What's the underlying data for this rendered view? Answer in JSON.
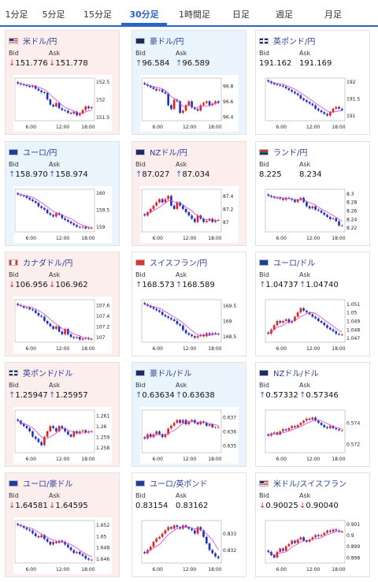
{
  "tabs": [
    {
      "label": "1分足",
      "active": false
    },
    {
      "label": "5分足",
      "active": false
    },
    {
      "label": "15分足",
      "active": false
    },
    {
      "label": "30分足",
      "active": true
    },
    {
      "label": "1時間足",
      "active": false
    },
    {
      "label": "日足",
      "active": false
    },
    {
      "label": "週足",
      "active": false
    },
    {
      "label": "月足",
      "active": false
    }
  ],
  "labels": {
    "bid": "Bid",
    "ask": "Ask"
  },
  "colors": {
    "up_arrow": "#2b64c8",
    "down_arrow": "#d23a2a",
    "ma_line": "#d640d6",
    "candle_up": "#e02020",
    "candle_down": "#1c2fc0",
    "title": "#2c3e9c"
  },
  "pairs": [
    {
      "name": "米ドル/円",
      "flag": "us-flag-icon",
      "bg": "red",
      "bid_arrow": "↓",
      "bid": "151.776",
      "ask_arrow": "↓",
      "ask": "151.778",
      "chart_data": {
        "type": "candlestick",
        "x_ticks": [
          "6:00",
          "12:00",
          "18:00"
        ],
        "y_ticks": [
          "152.5",
          "152",
          "151.5"
        ],
        "ylim": [
          151.4,
          152.6
        ],
        "series": [
          {
            "values": [
              152.45,
              152.42,
              152.4,
              152.38,
              152.35,
              152.38,
              152.3,
              152.25,
              152.2,
              152.18,
              152.0,
              151.85,
              151.8,
              151.9,
              151.75,
              151.7,
              151.68,
              151.62,
              151.6,
              151.65,
              151.55,
              151.6,
              151.7,
              151.8,
              151.75,
              151.78
            ]
          }
        ]
      }
    },
    {
      "name": "豪ドル/円",
      "flag": "au-flag-icon",
      "bg": "blue",
      "bid_arrow": "↑",
      "bid": "96.584",
      "ask_arrow": "↑",
      "ask": "96.589",
      "chart_data": {
        "type": "candlestick",
        "x_ticks": [
          "6:00",
          "12:00",
          "18:00"
        ],
        "y_ticks": [
          "96.8",
          "96.6",
          "96.4"
        ],
        "ylim": [
          96.35,
          96.9
        ],
        "series": [
          {
            "values": [
              96.82,
              96.8,
              96.78,
              96.76,
              96.74,
              96.75,
              96.72,
              96.7,
              96.55,
              96.5,
              96.62,
              96.6,
              96.45,
              96.48,
              96.55,
              96.6,
              96.52,
              96.5,
              96.48,
              96.55,
              96.58,
              96.6,
              96.55,
              96.57,
              96.6,
              96.58
            ]
          }
        ]
      }
    },
    {
      "name": "英ポンド/円",
      "flag": "uk-flag-icon",
      "bg": "white",
      "bid_arrow": "",
      "bid": "191.162",
      "ask_arrow": "",
      "ask": "191.169",
      "chart_data": {
        "type": "candlestick",
        "x_ticks": [
          "6:00",
          "12:00",
          "18:00"
        ],
        "y_ticks": [
          "192",
          "191.5",
          "191"
        ],
        "ylim": [
          190.85,
          192.1
        ],
        "series": [
          {
            "values": [
              192.0,
              191.95,
              191.92,
              191.9,
              191.88,
              191.85,
              191.8,
              191.75,
              191.7,
              191.65,
              191.6,
              191.5,
              191.45,
              191.4,
              191.35,
              191.3,
              191.2,
              191.15,
              191.1,
              191.05,
              191.0,
              191.1,
              191.2,
              191.25,
              191.2,
              191.16
            ]
          }
        ]
      }
    },
    {
      "name": "ユーロ/円",
      "flag": "eu-flag-icon",
      "bg": "blue",
      "bid_arrow": "↑",
      "bid": "158.970",
      "ask_arrow": "↑",
      "ask": "158.974",
      "chart_data": {
        "type": "candlestick",
        "x_ticks": [
          "6:00",
          "12:00",
          "18:00"
        ],
        "y_ticks": [
          "160",
          "159.5",
          "159"
        ],
        "ylim": [
          158.85,
          160.1
        ],
        "series": [
          {
            "values": [
              159.95,
              159.92,
              159.9,
              159.85,
              159.8,
              159.75,
              159.7,
              159.6,
              159.55,
              159.5,
              159.4,
              159.35,
              159.3,
              159.4,
              159.35,
              159.25,
              159.2,
              159.15,
              159.1,
              159.05,
              159.0,
              158.98,
              159.0,
              158.95,
              158.97,
              158.97
            ]
          }
        ]
      }
    },
    {
      "name": "NZドル/円",
      "flag": "nz-flag-icon",
      "bg": "red",
      "bid_arrow": "↑",
      "bid": "87.027",
      "ask_arrow": "↑",
      "ask": "87.034",
      "chart_data": {
        "type": "candlestick",
        "x_ticks": [
          "6:00",
          "12:00",
          "18:00"
        ],
        "y_ticks": [
          "87.4",
          "87.2",
          "87"
        ],
        "ylim": [
          86.85,
          87.5
        ],
        "series": [
          {
            "values": [
              87.1,
              87.15,
              87.2,
              87.25,
              87.3,
              87.35,
              87.3,
              87.35,
              87.4,
              87.25,
              87.2,
              87.3,
              87.25,
              87.2,
              87.15,
              87.1,
              87.05,
              87.0,
              87.1,
              87.05,
              87.0,
              87.02,
              87.05,
              87.0,
              87.03,
              87.03
            ]
          }
        ]
      }
    },
    {
      "name": "ランド/円",
      "flag": "za-flag-icon",
      "bg": "white",
      "bid_arrow": "",
      "bid": "8.225",
      "ask_arrow": "",
      "ask": "8.234",
      "chart_data": {
        "type": "candlestick",
        "x_ticks": [
          "6:00",
          "12:00",
          "18:00"
        ],
        "y_ticks": [
          "8.3",
          "8.28",
          "8.26",
          "8.24",
          "8.22"
        ],
        "ylim": [
          8.21,
          8.31
        ],
        "series": [
          {
            "values": [
              8.295,
              8.292,
              8.29,
              8.29,
              8.288,
              8.285,
              8.29,
              8.288,
              8.285,
              8.28,
              8.285,
              8.29,
              8.28,
              8.27,
              8.265,
              8.27,
              8.262,
              8.26,
              8.255,
              8.25,
              8.245,
              8.24,
              8.242,
              8.235,
              8.225,
              8.225
            ]
          }
        ]
      }
    },
    {
      "name": "カナダドル/円",
      "flag": "ca-flag-icon",
      "bg": "red",
      "bid_arrow": "↓",
      "bid": "106.956",
      "ask_arrow": "↓",
      "ask": "106.962",
      "chart_data": {
        "type": "candlestick",
        "x_ticks": [
          "6:00",
          "12:00",
          "18:00"
        ],
        "y_ticks": [
          "107.6",
          "107.4",
          "107.2",
          "107"
        ],
        "ylim": [
          106.9,
          107.7
        ],
        "series": [
          {
            "values": [
              107.6,
              107.58,
              107.55,
              107.55,
              107.52,
              107.5,
              107.45,
              107.4,
              107.38,
              107.3,
              107.25,
              107.2,
              107.15,
              107.2,
              107.1,
              107.05,
              107.15,
              107.05,
              107.0,
              106.98,
              107.0,
              106.95,
              106.97,
              106.98,
              106.96,
              106.96
            ]
          }
        ]
      }
    },
    {
      "name": "スイスフラン/円",
      "flag": "ch-flag-icon",
      "bg": "white",
      "bid_arrow": "↑",
      "bid": "168.573",
      "ask_arrow": "↑",
      "ask": "168.589",
      "chart_data": {
        "type": "candlestick",
        "x_ticks": [
          "6:00",
          "12:00",
          "18:00"
        ],
        "y_ticks": [
          "169.5",
          "169",
          "168.5"
        ],
        "ylim": [
          168.3,
          169.7
        ],
        "series": [
          {
            "values": [
              169.55,
              169.5,
              169.45,
              169.4,
              169.35,
              169.3,
              169.2,
              169.15,
              169.1,
              169.05,
              169.0,
              168.9,
              168.85,
              168.7,
              168.6,
              168.55,
              168.5,
              168.45,
              168.5,
              168.55,
              168.5,
              168.6,
              168.55,
              168.6,
              168.58,
              168.57
            ]
          }
        ]
      }
    },
    {
      "name": "ユーロ/ドル",
      "flag": "eu-us-flag-icon",
      "bg": "white",
      "bid_arrow": "↑",
      "bid": "1.04737",
      "ask_arrow": "↑",
      "ask": "1.04740",
      "chart_data": {
        "type": "candlestick",
        "x_ticks": [
          "6:00",
          "12:00",
          "18:00"
        ],
        "y_ticks": [
          "1.051",
          "1.05",
          "1.049",
          "1.048",
          "1.047"
        ],
        "ylim": [
          1.0465,
          1.0515
        ],
        "series": [
          {
            "values": [
              1.0475,
              1.048,
              1.0485,
              1.049,
              1.0488,
              1.049,
              1.0492,
              1.0488,
              1.049,
              1.0495,
              1.05,
              1.0505,
              1.0502,
              1.05,
              1.0498,
              1.0495,
              1.0493,
              1.049,
              1.0488,
              1.0485,
              1.0482,
              1.048,
              1.0478,
              1.0475,
              1.0474,
              1.0474
            ]
          }
        ]
      }
    },
    {
      "name": "英ポンド/ドル",
      "flag": "uk-us-flag-icon",
      "bg": "red",
      "bid_arrow": "↑",
      "bid": "1.25947",
      "ask_arrow": "↑",
      "ask": "1.25957",
      "chart_data": {
        "type": "candlestick",
        "x_ticks": [
          "6:00",
          "12:00",
          "18:00"
        ],
        "y_ticks": [
          "1.261",
          "1.26",
          "1.259",
          "1.258"
        ],
        "ylim": [
          1.2575,
          1.2615
        ],
        "series": [
          {
            "values": [
              1.2605,
              1.2602,
              1.26,
              1.2598,
              1.2595,
              1.259,
              1.2588,
              1.2585,
              1.2582,
              1.259,
              1.2595,
              1.26,
              1.2598,
              1.2595,
              1.26,
              1.2598,
              1.2595,
              1.2592,
              1.259,
              1.2595,
              1.2593,
              1.2595,
              1.2596,
              1.2594,
              1.2595,
              1.2595
            ]
          }
        ]
      }
    },
    {
      "name": "豪ドル/ドル",
      "flag": "au-us-flag-icon",
      "bg": "blue",
      "bid_arrow": "↑",
      "bid": "0.63634",
      "ask_arrow": "↑",
      "ask": "0.63638",
      "chart_data": {
        "type": "candlestick",
        "x_ticks": [
          "6:00",
          "12:00",
          "18:00"
        ],
        "y_ticks": [
          "0.637",
          "0.636",
          "0.635"
        ],
        "ylim": [
          0.6345,
          0.6375
        ],
        "series": [
          {
            "values": [
              0.6355,
              0.6358,
              0.6356,
              0.6358,
              0.636,
              0.6358,
              0.6356,
              0.6358,
              0.6362,
              0.6364,
              0.6366,
              0.6368,
              0.6366,
              0.6368,
              0.6365,
              0.6367,
              0.6368,
              0.6366,
              0.6365,
              0.6367,
              0.6366,
              0.6364,
              0.6365,
              0.6363,
              0.6363,
              0.6363
            ]
          }
        ]
      }
    },
    {
      "name": "NZドル/ドル",
      "flag": "nz-us-flag-icon",
      "bg": "white",
      "bid_arrow": "↑",
      "bid": "0.57332",
      "ask_arrow": "↑",
      "ask": "0.57346",
      "chart_data": {
        "type": "candlestick",
        "x_ticks": [
          "6:00",
          "12:00",
          "18:00"
        ],
        "y_ticks": [
          "0.574",
          "0.572"
        ],
        "ylim": [
          0.5712,
          0.5752
        ],
        "series": [
          {
            "values": [
              0.5728,
              0.573,
              0.5731,
              0.5729,
              0.5732,
              0.5734,
              0.5733,
              0.5735,
              0.5737,
              0.5736,
              0.5738,
              0.574,
              0.5742,
              0.5744,
              0.5743,
              0.5745,
              0.5742,
              0.574,
              0.5738,
              0.5736,
              0.5735,
              0.5737,
              0.5735,
              0.5734,
              0.5733,
              0.5733
            ]
          }
        ]
      }
    },
    {
      "name": "ユーロ/豪ドル",
      "flag": "eu-au-flag-icon",
      "bg": "red",
      "bid_arrow": "↓",
      "bid": "1.64581",
      "ask_arrow": "↓",
      "ask": "1.64595",
      "chart_data": {
        "type": "candlestick",
        "x_ticks": [
          "6:00",
          "12:00",
          "18:00"
        ],
        "y_ticks": [
          "1.652",
          "1.65",
          "1.648",
          "1.646"
        ],
        "ylim": [
          1.6452,
          1.6528
        ],
        "series": [
          {
            "values": [
              1.652,
              1.6518,
              1.6515,
              1.6512,
              1.651,
              1.6505,
              1.65,
              1.6498,
              1.6502,
              1.6495,
              1.649,
              1.6485,
              1.649,
              1.6488,
              1.6492,
              1.649,
              1.6485,
              1.648,
              1.6475,
              1.647,
              1.6472,
              1.6468,
              1.6465,
              1.646,
              1.6458,
              1.6458
            ]
          }
        ]
      }
    },
    {
      "name": "ユーロ/英ポンド",
      "flag": "eu-uk-flag-icon",
      "bg": "white",
      "bid_arrow": "",
      "bid": "0.83154",
      "ask_arrow": "",
      "ask": "0.83162",
      "chart_data": {
        "type": "candlestick",
        "x_ticks": [
          "6:00",
          "12:00",
          "18:00"
        ],
        "y_ticks": [
          "0.833",
          "0.832"
        ],
        "ylim": [
          0.8312,
          0.8338
        ],
        "series": [
          {
            "values": [
              0.8318,
              0.832,
              0.8322,
              0.8325,
              0.8327,
              0.8328,
              0.833,
              0.8332,
              0.8334,
              0.8333,
              0.8335,
              0.8334,
              0.8333,
              0.8335,
              0.8334,
              0.8333,
              0.8332,
              0.833,
              0.8334,
              0.8332,
              0.8328,
              0.8324,
              0.832,
              0.8318,
              0.8316,
              0.8315
            ]
          }
        ]
      }
    },
    {
      "name": "米ドル/スイスフラン",
      "flag": "us-ch-flag-icon",
      "bg": "white",
      "bid_arrow": "↓",
      "bid": "0.90025",
      "ask_arrow": "↓",
      "ask": "0.90040",
      "chart_data": {
        "type": "candlestick",
        "x_ticks": [
          "6:00",
          "12:00",
          "18:00"
        ],
        "y_ticks": [
          "0.901",
          "0.9",
          "0.899",
          "0.898"
        ],
        "ylim": [
          0.8975,
          0.9013
        ],
        "series": [
          {
            "values": [
              0.8985,
              0.8982,
              0.898,
              0.8985,
              0.8988,
              0.8986,
              0.899,
              0.8992,
              0.8995,
              0.8993,
              0.8996,
              0.8998,
              0.8995,
              0.8994,
              0.8996,
              0.8998,
              0.9,
              0.8999,
              0.9,
              0.9002,
              0.9004,
              0.9003,
              0.9005,
              0.9004,
              0.9003,
              0.9003
            ]
          }
        ]
      }
    }
  ]
}
